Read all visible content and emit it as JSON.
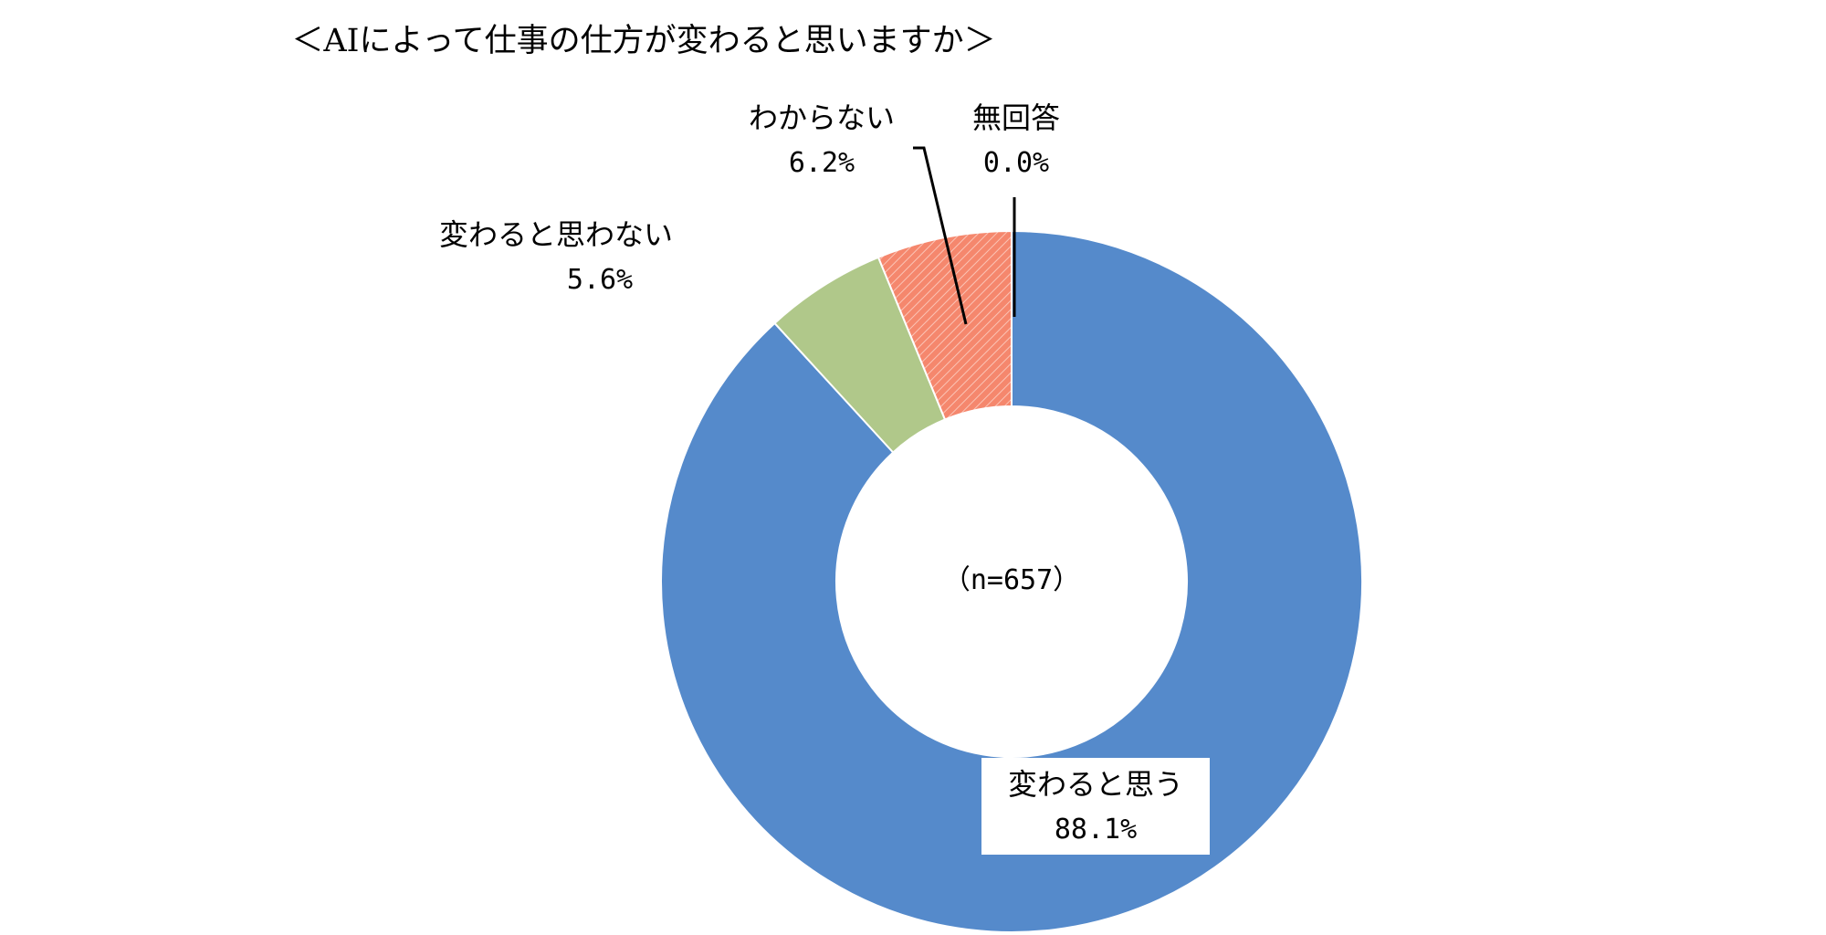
{
  "chart_data": {
    "type": "pie",
    "variant": "donut",
    "title": "＜AIによって仕事の仕方が変わると思いますか＞",
    "center_label": "（n=657）",
    "categories": [
      "変わると思う",
      "変わると思わない",
      "わからない",
      "無回答"
    ],
    "values": [
      88.1,
      5.6,
      6.2,
      0.0
    ],
    "value_labels": [
      "88.1%",
      "5.6%",
      "6.2%",
      "0.0%"
    ],
    "colors": [
      "#558ACB",
      "#B0C88A",
      "#F5876D",
      "#999999"
    ],
    "hatched": [
      false,
      false,
      true,
      false
    ],
    "start_angle": "12 o'clock",
    "direction": "clockwise"
  }
}
